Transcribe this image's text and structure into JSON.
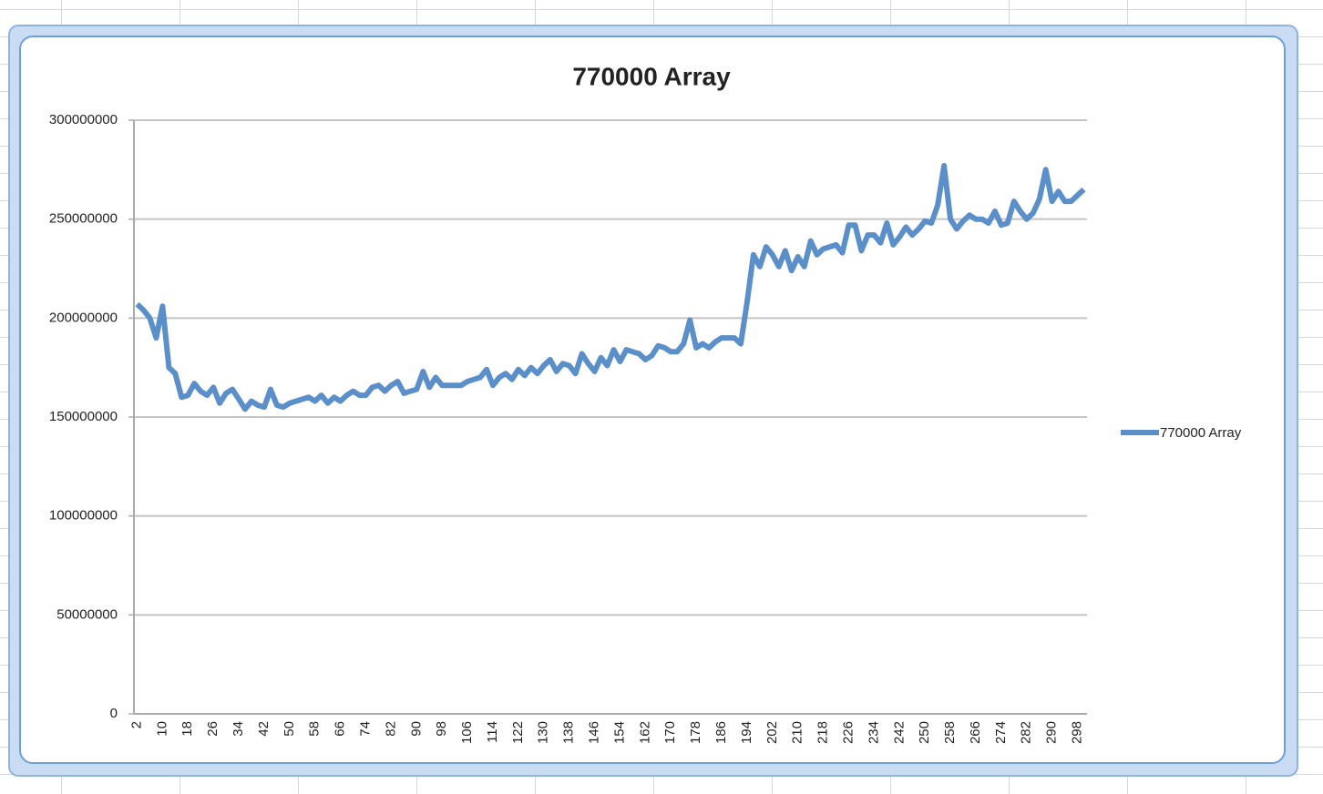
{
  "chart_data": {
    "type": "line",
    "title": "770000 Array",
    "categories": [
      2,
      null,
      null,
      null,
      10,
      null,
      null,
      null,
      18,
      null,
      null,
      null,
      26,
      null,
      null,
      null,
      34,
      null,
      null,
      null,
      42,
      null,
      null,
      null,
      50,
      null,
      null,
      null,
      58,
      null,
      null,
      null,
      66,
      null,
      null,
      null,
      74,
      null,
      null,
      null,
      82,
      null,
      null,
      null,
      90,
      null,
      null,
      null,
      98,
      null,
      null,
      null,
      106,
      null,
      null,
      null,
      114,
      null,
      null,
      null,
      122,
      null,
      null,
      null,
      130,
      null,
      null,
      null,
      138,
      null,
      null,
      null,
      146,
      null,
      null,
      null,
      154,
      null,
      null,
      null,
      162,
      null,
      null,
      null,
      170,
      null,
      null,
      null,
      178,
      null,
      null,
      null,
      186,
      null,
      null,
      null,
      194,
      null,
      null,
      null,
      202,
      null,
      null,
      null,
      210,
      null,
      null,
      null,
      218,
      null,
      null,
      null,
      226,
      null,
      null,
      null,
      234,
      null,
      null,
      null,
      242,
      null,
      null,
      null,
      250,
      null,
      null,
      null,
      258,
      null,
      null,
      null,
      266,
      null,
      null,
      null,
      274,
      null,
      null,
      null,
      282,
      null,
      null,
      null,
      290,
      null,
      null,
      null,
      298,
      null
    ],
    "series": [
      {
        "name": "770000 Array",
        "color": "#5b8fc9",
        "values": [
          207000000,
          204000000,
          200000000,
          190000000,
          206000000,
          175000000,
          172000000,
          160000000,
          161000000,
          167000000,
          163000000,
          161000000,
          165000000,
          157000000,
          162000000,
          164000000,
          159000000,
          154000000,
          158000000,
          156000000,
          155000000,
          164000000,
          156000000,
          155000000,
          157000000,
          158000000,
          159000000,
          160000000,
          158000000,
          161000000,
          157000000,
          160000000,
          158000000,
          161000000,
          163000000,
          161000000,
          161000000,
          165000000,
          166000000,
          163000000,
          166000000,
          168000000,
          162000000,
          163000000,
          164000000,
          173000000,
          165000000,
          170000000,
          166000000,
          166000000,
          166000000,
          166000000,
          168000000,
          169000000,
          170000000,
          174000000,
          166000000,
          170000000,
          172000000,
          169000000,
          174000000,
          171000000,
          175000000,
          172000000,
          176000000,
          179000000,
          173000000,
          177000000,
          176000000,
          172000000,
          182000000,
          177000000,
          173000000,
          180000000,
          176000000,
          184000000,
          178000000,
          184000000,
          183000000,
          182000000,
          179000000,
          181000000,
          186000000,
          185000000,
          183000000,
          183000000,
          187000000,
          199000000,
          185000000,
          187000000,
          185000000,
          188000000,
          190000000,
          190000000,
          190000000,
          187000000,
          208000000,
          232000000,
          226000000,
          236000000,
          232000000,
          226000000,
          234000000,
          224000000,
          231000000,
          226000000,
          239000000,
          232000000,
          235000000,
          236000000,
          237000000,
          233000000,
          247000000,
          247000000,
          234000000,
          242000000,
          242000000,
          238000000,
          248000000,
          237000000,
          241000000,
          246000000,
          242000000,
          245000000,
          249000000,
          248000000,
          257000000,
          277000000,
          250000000,
          245000000,
          249000000,
          252000000,
          250000000,
          250000000,
          248000000,
          254000000,
          247000000,
          248000000,
          259000000,
          254000000,
          250000000,
          253000000,
          260000000,
          275000000,
          259000000,
          264000000,
          259000000,
          259000000,
          262000000,
          265000000
        ]
      }
    ],
    "ylim": [
      0,
      300000000
    ],
    "yticks": [
      0,
      50000000,
      100000000,
      150000000,
      200000000,
      250000000,
      300000000
    ],
    "grid": true,
    "legend": "right"
  }
}
